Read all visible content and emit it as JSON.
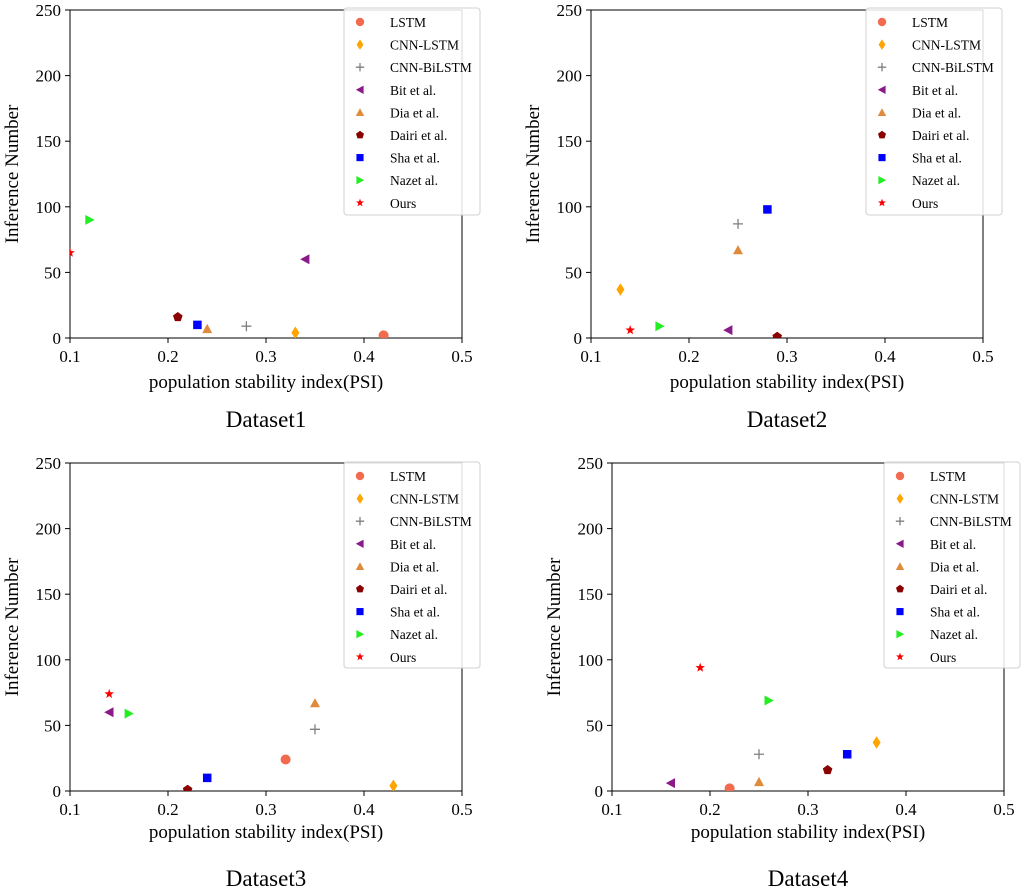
{
  "chart_data": [
    {
      "type": "scatter",
      "title": "Dataset1",
      "xlabel": "population stability index(PSI)",
      "ylabel": "Inference Number",
      "xlim": [
        0.1,
        0.5
      ],
      "ylim": [
        0,
        250
      ],
      "xticks": [
        "0.1",
        "0.2",
        "0.3",
        "0.4",
        "0.5"
      ],
      "yticks": [
        "0",
        "50",
        "100",
        "150",
        "200",
        "250"
      ],
      "legend_position": "top-right",
      "series": [
        {
          "name": "LSTM",
          "x": 0.42,
          "y": 2
        },
        {
          "name": "CNN-LSTM",
          "x": 0.33,
          "y": 4
        },
        {
          "name": "CNN-BiLSTM",
          "x": 0.28,
          "y": 9
        },
        {
          "name": "Bit et al.",
          "x": 0.34,
          "y": 60
        },
        {
          "name": "Dia et al.",
          "x": 0.24,
          "y": 7
        },
        {
          "name": "Dairi et al.",
          "x": 0.21,
          "y": 16
        },
        {
          "name": "Sha et al.",
          "x": 0.23,
          "y": 10
        },
        {
          "name": "Nazet al.",
          "x": 0.12,
          "y": 90
        },
        {
          "name": "Ours",
          "x": 0.1,
          "y": 65
        }
      ]
    },
    {
      "type": "scatter",
      "title": "Dataset2",
      "xlabel": "population stability index(PSI)",
      "ylabel": "Inference Number",
      "xlim": [
        0.1,
        0.5
      ],
      "ylim": [
        0,
        250
      ],
      "xticks": [
        "0.1",
        "0.2",
        "0.3",
        "0.4",
        "0.5"
      ],
      "yticks": [
        "0",
        "50",
        "100",
        "150",
        "200",
        "250"
      ],
      "legend_position": "top-right",
      "series": [
        {
          "name": "LSTM",
          "x": null,
          "y": null
        },
        {
          "name": "CNN-LSTM",
          "x": 0.13,
          "y": 37
        },
        {
          "name": "CNN-BiLSTM",
          "x": 0.25,
          "y": 87
        },
        {
          "name": "Bit et al.",
          "x": 0.24,
          "y": 6
        },
        {
          "name": "Dia et al.",
          "x": 0.25,
          "y": 67
        },
        {
          "name": "Dairi et al.",
          "x": 0.29,
          "y": 1
        },
        {
          "name": "Sha et al.",
          "x": 0.28,
          "y": 98
        },
        {
          "name": "Nazet al.",
          "x": 0.17,
          "y": 9
        },
        {
          "name": "Ours",
          "x": 0.14,
          "y": 6
        }
      ]
    },
    {
      "type": "scatter",
      "title": "Dataset3",
      "xlabel": "population stability index(PSI)",
      "ylabel": "Inference Number",
      "xlim": [
        0.1,
        0.5
      ],
      "ylim": [
        0,
        250
      ],
      "xticks": [
        "0.1",
        "0.2",
        "0.3",
        "0.4",
        "0.5"
      ],
      "yticks": [
        "0",
        "50",
        "100",
        "150",
        "200",
        "250"
      ],
      "legend_position": "top-right",
      "series": [
        {
          "name": "LSTM",
          "x": 0.32,
          "y": 24
        },
        {
          "name": "CNN-LSTM",
          "x": 0.43,
          "y": 4
        },
        {
          "name": "CNN-BiLSTM",
          "x": 0.35,
          "y": 47
        },
        {
          "name": "Bit et al.",
          "x": 0.14,
          "y": 60
        },
        {
          "name": "Dia et al.",
          "x": 0.35,
          "y": 67
        },
        {
          "name": "Dairi et al.",
          "x": 0.22,
          "y": 1
        },
        {
          "name": "Sha et al.",
          "x": 0.24,
          "y": 10
        },
        {
          "name": "Nazet al.",
          "x": 0.16,
          "y": 59
        },
        {
          "name": "Ours",
          "x": 0.14,
          "y": 74
        }
      ]
    },
    {
      "type": "scatter",
      "title": "Dataset4",
      "xlabel": "population stability index(PSI)",
      "ylabel": "Inference Number",
      "xlim": [
        0.1,
        0.5
      ],
      "ylim": [
        0,
        250
      ],
      "xticks": [
        "0.1",
        "0.2",
        "0.3",
        "0.4",
        "0.5"
      ],
      "yticks": [
        "0",
        "50",
        "100",
        "150",
        "200",
        "250"
      ],
      "legend_position": "top-right",
      "series": [
        {
          "name": "LSTM",
          "x": 0.22,
          "y": 2
        },
        {
          "name": "CNN-LSTM",
          "x": 0.37,
          "y": 37
        },
        {
          "name": "CNN-BiLSTM",
          "x": 0.25,
          "y": 28
        },
        {
          "name": "Bit et al.",
          "x": 0.16,
          "y": 6
        },
        {
          "name": "Dia et al.",
          "x": 0.25,
          "y": 7
        },
        {
          "name": "Dairi et al.",
          "x": 0.32,
          "y": 16
        },
        {
          "name": "Sha et al.",
          "x": 0.34,
          "y": 28
        },
        {
          "name": "Nazet al.",
          "x": 0.26,
          "y": 69
        },
        {
          "name": "Ours",
          "x": 0.19,
          "y": 94
        }
      ]
    }
  ],
  "markers": {
    "LSTM": {
      "shape": "circle",
      "color": "#f26b4f"
    },
    "CNN-LSTM": {
      "shape": "diamond",
      "color": "#ffa500"
    },
    "CNN-BiLSTM": {
      "shape": "plus",
      "color": "#808080"
    },
    "Bit et al.": {
      "shape": "triangle-left",
      "color": "#8b1a89"
    },
    "Dia et al.": {
      "shape": "triangle-up",
      "color": "#e08a3c"
    },
    "Dairi et al.": {
      "shape": "pentagon",
      "color": "#8b0000"
    },
    "Sha et al.": {
      "shape": "square",
      "color": "#0000ff"
    },
    "Nazet al.": {
      "shape": "triangle-right",
      "color": "#22ee22"
    },
    "Ours": {
      "shape": "star",
      "color": "#ff0000"
    }
  }
}
